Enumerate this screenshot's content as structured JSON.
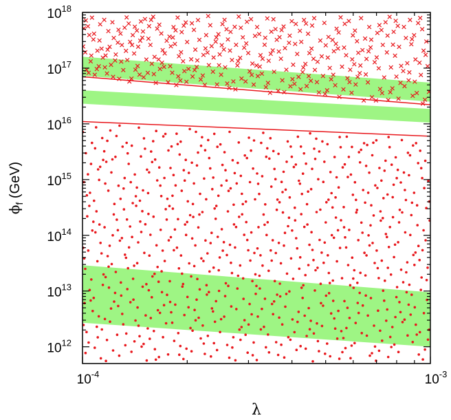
{
  "chart_data": {
    "type": "scatter",
    "title": "",
    "xlabel": "λ",
    "ylabel": "ϕ",
    "ylabel_subscript": "f",
    "ylabel_unit": "(GeV)",
    "xscale": "log",
    "yscale": "log",
    "xlim": [
      0.0001,
      0.001
    ],
    "ylim": [
      500000000000.0,
      1e+18
    ],
    "x_ticks": [
      {
        "value": 0.0001,
        "base": "10",
        "exp": "-4"
      },
      {
        "value": 0.001,
        "base": "10",
        "exp": "-3"
      }
    ],
    "y_ticks": [
      {
        "value": 1000000000000.0,
        "base": "10",
        "exp": "12"
      },
      {
        "value": 10000000000000.0,
        "base": "10",
        "exp": "13"
      },
      {
        "value": 100000000000000.0,
        "base": "10",
        "exp": "14"
      },
      {
        "value": 1000000000000000.0,
        "base": "10",
        "exp": "15"
      },
      {
        "value": 1e+16,
        "base": "10",
        "exp": "16"
      },
      {
        "value": 1e+17,
        "base": "10",
        "exp": "17"
      },
      {
        "value": 1e+18,
        "base": "10",
        "exp": "18"
      }
    ],
    "grid": false,
    "legend": "none",
    "bands": [
      {
        "x": [
          0.0001,
          0.001
        ],
        "lower": [
          2700000000000.0,
          1000000000000.0
        ],
        "upper": [
          29000000000000.0,
          9500000000000.0
        ]
      },
      {
        "x": [
          0.0001,
          0.001
        ],
        "lower": [
          2.3e+16,
          1.05e+16
        ],
        "upper": [
          4e+16,
          1.85e+16
        ]
      },
      {
        "x": [
          0.0001,
          0.001
        ],
        "lower": [
          7.3e+16,
          2.5e+16
        ],
        "upper": [
          1.6e+17,
          5.5e+16
        ]
      }
    ],
    "boundary_lines": [
      {
        "x": [
          0.0001,
          0.001
        ],
        "y": [
          1.1e+16,
          6000000000000000.0
        ]
      },
      {
        "x": [
          0.0001,
          0.001
        ],
        "y": [
          7e+16,
          2.2e+16
        ]
      }
    ],
    "dot_region": {
      "x": [
        0.0001,
        0.001
      ],
      "lower": [
        500000000000.0,
        500000000000.0
      ],
      "upper": [
        1e+16,
        5700000000000000.0
      ],
      "count": 780
    },
    "cross_region": {
      "x": [
        0.0001,
        0.001
      ],
      "lower": [
        6.6e+16,
        2.1e+16
      ],
      "upper": [
        1e+18,
        1e+18
      ],
      "count": 360
    },
    "colors": {
      "band": "#9ef584",
      "marker": "#e8171c",
      "line": "#e8171c",
      "axis": "#000000"
    }
  }
}
